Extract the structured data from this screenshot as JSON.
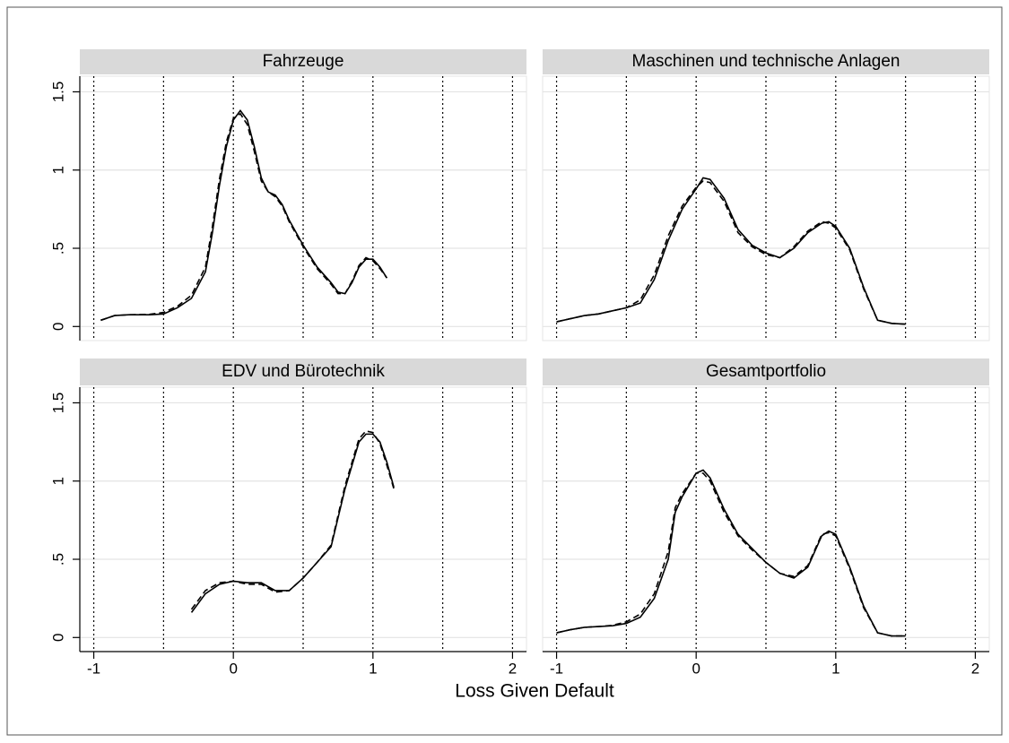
{
  "x_label": "Loss Given Default",
  "xlim": [
    -1.1,
    2.1
  ],
  "ylim": [
    -0.09,
    1.6
  ],
  "xticks": [
    -1,
    0,
    1,
    2
  ],
  "xgrid": [
    -1,
    -0.5,
    0,
    0.5,
    1,
    1.5,
    2
  ],
  "yticks": [
    0,
    {
      "value": 0.5,
      "label": ".5"
    },
    1,
    1.5
  ],
  "grid": true,
  "chart_data": [
    {
      "type": "line",
      "title": "Fahrzeuge",
      "x": [
        -0.95,
        -0.85,
        -0.75,
        -0.6,
        -0.5,
        -0.4,
        -0.3,
        -0.2,
        -0.15,
        -0.1,
        -0.05,
        0,
        0.05,
        0.1,
        0.15,
        0.2,
        0.25,
        0.3,
        0.35,
        0.4,
        0.5,
        0.6,
        0.7,
        0.75,
        0.8,
        0.85,
        0.9,
        0.95,
        1.0,
        1.05,
        1.1
      ],
      "series": [
        {
          "color": "#000000",
          "dash": "none",
          "values": [
            0.04,
            0.07,
            0.075,
            0.075,
            0.08,
            0.12,
            0.18,
            0.35,
            0.6,
            0.9,
            1.15,
            1.32,
            1.38,
            1.32,
            1.15,
            0.95,
            0.86,
            0.84,
            0.78,
            0.68,
            0.52,
            0.38,
            0.28,
            0.22,
            0.21,
            0.28,
            0.38,
            0.43,
            0.43,
            0.38,
            0.31
          ]
        },
        {
          "color": "#000000",
          "dash": "7,4",
          "values": [
            0.04,
            0.07,
            0.075,
            0.078,
            0.09,
            0.13,
            0.2,
            0.38,
            0.64,
            0.94,
            1.18,
            1.33,
            1.36,
            1.29,
            1.12,
            0.93,
            0.86,
            0.83,
            0.77,
            0.67,
            0.51,
            0.37,
            0.27,
            0.21,
            0.21,
            0.29,
            0.39,
            0.44,
            0.42,
            0.37,
            0.31
          ]
        }
      ]
    },
    {
      "type": "line",
      "title": "Maschinen und technische Anlagen",
      "x": [
        -1,
        -0.9,
        -0.8,
        -0.7,
        -0.6,
        -0.5,
        -0.4,
        -0.3,
        -0.2,
        -0.1,
        0,
        0.05,
        0.1,
        0.2,
        0.3,
        0.4,
        0.5,
        0.6,
        0.7,
        0.8,
        0.9,
        0.95,
        1.0,
        1.1,
        1.2,
        1.3,
        1.4,
        1.5
      ],
      "series": [
        {
          "color": "#000000",
          "dash": "none",
          "values": [
            0.03,
            0.05,
            0.07,
            0.08,
            0.1,
            0.12,
            0.15,
            0.3,
            0.55,
            0.75,
            0.88,
            0.95,
            0.94,
            0.82,
            0.62,
            0.52,
            0.47,
            0.44,
            0.5,
            0.6,
            0.66,
            0.67,
            0.64,
            0.5,
            0.25,
            0.04,
            0.02,
            0.015
          ]
        },
        {
          "color": "#000000",
          "dash": "7,4",
          "values": [
            0.03,
            0.05,
            0.07,
            0.08,
            0.1,
            0.12,
            0.17,
            0.33,
            0.58,
            0.77,
            0.89,
            0.93,
            0.92,
            0.8,
            0.6,
            0.51,
            0.46,
            0.44,
            0.51,
            0.61,
            0.67,
            0.66,
            0.63,
            0.49,
            0.24,
            0.04,
            0.02,
            0.015
          ]
        }
      ]
    },
    {
      "type": "line",
      "title": "EDV und Bürotechnik",
      "x": [
        -0.3,
        -0.2,
        -0.1,
        0,
        0.1,
        0.2,
        0.3,
        0.4,
        0.5,
        0.6,
        0.7,
        0.8,
        0.9,
        0.95,
        1.0,
        1.05,
        1.1,
        1.15
      ],
      "series": [
        {
          "color": "#000000",
          "dash": "none",
          "values": [
            0.16,
            0.28,
            0.34,
            0.36,
            0.35,
            0.35,
            0.3,
            0.3,
            0.38,
            0.48,
            0.58,
            0.95,
            1.25,
            1.3,
            1.3,
            1.25,
            1.12,
            0.96
          ]
        },
        {
          "color": "#000000",
          "dash": "7,4",
          "values": [
            0.18,
            0.3,
            0.35,
            0.36,
            0.34,
            0.34,
            0.29,
            0.3,
            0.38,
            0.48,
            0.59,
            0.97,
            1.27,
            1.32,
            1.31,
            1.24,
            1.1,
            0.95
          ]
        }
      ]
    },
    {
      "type": "line",
      "title": "Gesamtportfolio",
      "x": [
        -1,
        -0.9,
        -0.8,
        -0.7,
        -0.6,
        -0.5,
        -0.4,
        -0.3,
        -0.2,
        -0.15,
        -0.1,
        0,
        0.05,
        0.1,
        0.2,
        0.3,
        0.4,
        0.5,
        0.6,
        0.7,
        0.8,
        0.9,
        0.95,
        1.0,
        1.1,
        1.2,
        1.3,
        1.4,
        1.5
      ],
      "series": [
        {
          "color": "#000000",
          "dash": "none",
          "values": [
            0.03,
            0.05,
            0.065,
            0.07,
            0.075,
            0.09,
            0.13,
            0.25,
            0.5,
            0.8,
            0.9,
            1.05,
            1.07,
            1.02,
            0.82,
            0.66,
            0.57,
            0.48,
            0.41,
            0.38,
            0.45,
            0.65,
            0.68,
            0.66,
            0.45,
            0.2,
            0.03,
            0.01,
            0.01
          ]
        },
        {
          "color": "#000000",
          "dash": "7,4",
          "values": [
            0.03,
            0.05,
            0.065,
            0.07,
            0.078,
            0.1,
            0.15,
            0.28,
            0.55,
            0.83,
            0.92,
            1.05,
            1.05,
            1.0,
            0.8,
            0.65,
            0.56,
            0.48,
            0.41,
            0.39,
            0.46,
            0.66,
            0.67,
            0.65,
            0.44,
            0.19,
            0.03,
            0.01,
            0.01
          ]
        }
      ]
    }
  ]
}
